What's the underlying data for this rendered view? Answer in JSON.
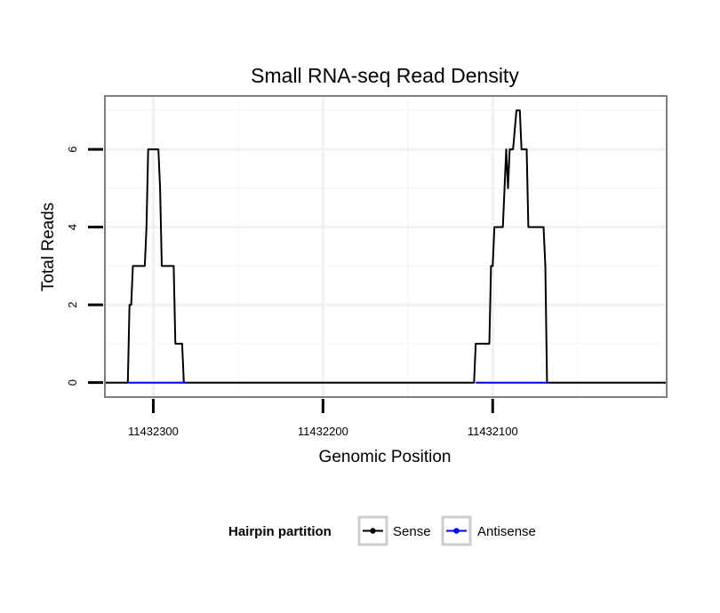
{
  "chart_data": {
    "type": "line",
    "title": "Small RNA-seq Read Density",
    "xlabel": "Genomic Position",
    "ylabel": "Total Reads",
    "x_reversed": true,
    "xlim": [
      11432328,
      11431998
    ],
    "ylim": [
      -0.35,
      7.35
    ],
    "x_ticks": [
      11432300,
      11432200,
      11432100
    ],
    "x_tick_labels": [
      "11432300",
      "11432200",
      "11432100"
    ],
    "y_ticks": [
      0,
      2,
      4,
      6
    ],
    "y_tick_labels": [
      "0",
      "2",
      "4",
      "6"
    ],
    "grid": true,
    "legend": {
      "title": "Hairpin partition",
      "position": "bottom",
      "entries": [
        {
          "label": "Sense",
          "color": "#000000"
        },
        {
          "label": "Antisense",
          "color": "#0000ff"
        }
      ]
    },
    "series": [
      {
        "name": "Sense",
        "color": "#000000",
        "x": [
          11432328,
          11432315,
          11432314,
          11432313,
          11432312,
          11432311,
          11432305,
          11432304,
          11432303,
          11432302,
          11432297,
          11432296,
          11432295,
          11432294,
          11432293,
          11432288,
          11432287,
          11432286,
          11432283,
          11432282,
          11432281,
          11432280,
          11432279,
          11432278,
          11432111,
          11432110,
          11432109,
          11432108,
          11432102,
          11432101,
          11432100,
          11432099,
          11432098,
          11432094,
          11432093,
          11432092,
          11432091,
          11432090,
          11432089,
          11432088,
          11432086,
          11432085,
          11432084,
          11432083,
          11432080,
          11432079,
          11432078,
          11432077,
          11432076,
          11432071,
          11432070,
          11432069,
          11432068,
          11432067,
          11431998
        ],
        "values": [
          0,
          0,
          2,
          2,
          3,
          3,
          3,
          4,
          6,
          6,
          6,
          5,
          3,
          3,
          3,
          3,
          1,
          1,
          1,
          0,
          0,
          0,
          0,
          0,
          0,
          1,
          1,
          1,
          1,
          3,
          3,
          4,
          4,
          4,
          5,
          6,
          5,
          6,
          6,
          6,
          7,
          7,
          7,
          6,
          6,
          4,
          4,
          4,
          4,
          4,
          4,
          3,
          0,
          0,
          0
        ]
      },
      {
        "name": "Antisense",
        "color": "#0000ff",
        "x": [
          11432315,
          11432280
        ],
        "values": [
          0,
          0
        ]
      },
      {
        "name": "Antisense",
        "color": "#0000ff",
        "x": [
          11432110,
          11432067
        ],
        "values": [
          0,
          0
        ]
      }
    ]
  }
}
